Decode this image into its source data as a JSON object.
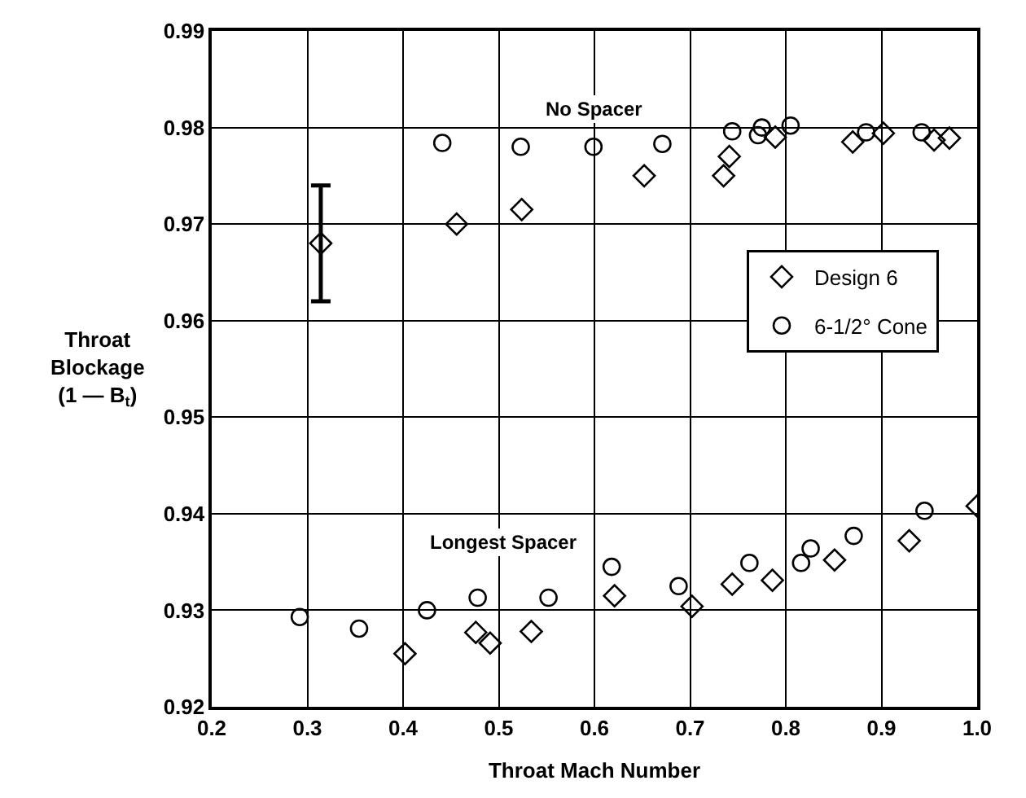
{
  "chart_data": {
    "type": "scatter",
    "xlabel": "Throat Mach Number",
    "ylabel": "Throat\nBlockage\n(1 — B$_{t}$)",
    "xlim": [
      0.2,
      1.0
    ],
    "xticks": [
      0.2,
      0.3,
      0.4,
      0.5,
      0.6,
      0.7,
      0.8,
      0.9,
      {
        "value": 1.0,
        "label": "1.0"
      }
    ],
    "ylim": [
      0.92,
      0.99
    ],
    "yticks": [
      0.92,
      0.93,
      0.94,
      0.95,
      0.96,
      0.97,
      0.98,
      0.99
    ],
    "grid": true,
    "legend": "right",
    "annotations": [
      "No Spacer",
      "Longest Spacer"
    ],
    "series": [
      {
        "name": "Design 6",
        "color": "#000000",
        "marker": "diamond",
        "x": [
          0.314,
          0.456,
          0.524,
          0.652,
          0.735,
          0.741,
          0.789,
          0.87,
          0.902,
          0.955,
          0.971,
          0.402,
          0.476,
          0.491,
          0.534,
          0.621,
          0.702,
          0.744,
          0.786,
          0.851,
          0.929,
          1.0
        ],
        "values": [
          0.968,
          0.97,
          0.9715,
          0.975,
          0.975,
          0.977,
          0.979,
          0.9785,
          0.9794,
          0.9787,
          0.9789,
          0.9255,
          0.9277,
          0.9266,
          0.9278,
          0.9315,
          0.9304,
          0.9327,
          0.9331,
          0.9352,
          0.9372,
          0.9408
        ],
        "errors": [
          [
            0.962,
            0.974
          ],
          null,
          null,
          null,
          null,
          null,
          null,
          null,
          null,
          null,
          null,
          null,
          null,
          null,
          null,
          null,
          null,
          null,
          null,
          null,
          null,
          null
        ]
      },
      {
        "name": "6-1/2° Cone",
        "color": "#000000",
        "marker": "circle",
        "x": [
          0.441,
          0.523,
          0.599,
          0.671,
          0.744,
          0.771,
          0.775,
          0.805,
          0.884,
          0.942,
          0.292,
          0.354,
          0.425,
          0.478,
          0.552,
          0.618,
          0.688,
          0.762,
          0.816,
          0.826,
          0.871,
          0.945
        ],
        "values": [
          0.9784,
          0.978,
          0.978,
          0.9783,
          0.9796,
          0.9792,
          0.98,
          0.9802,
          0.9795,
          0.9795,
          0.9293,
          0.9281,
          0.93,
          0.9313,
          0.9313,
          0.9345,
          0.9325,
          0.9349,
          0.9349,
          0.9364,
          0.9377,
          0.9403
        ]
      }
    ]
  }
}
